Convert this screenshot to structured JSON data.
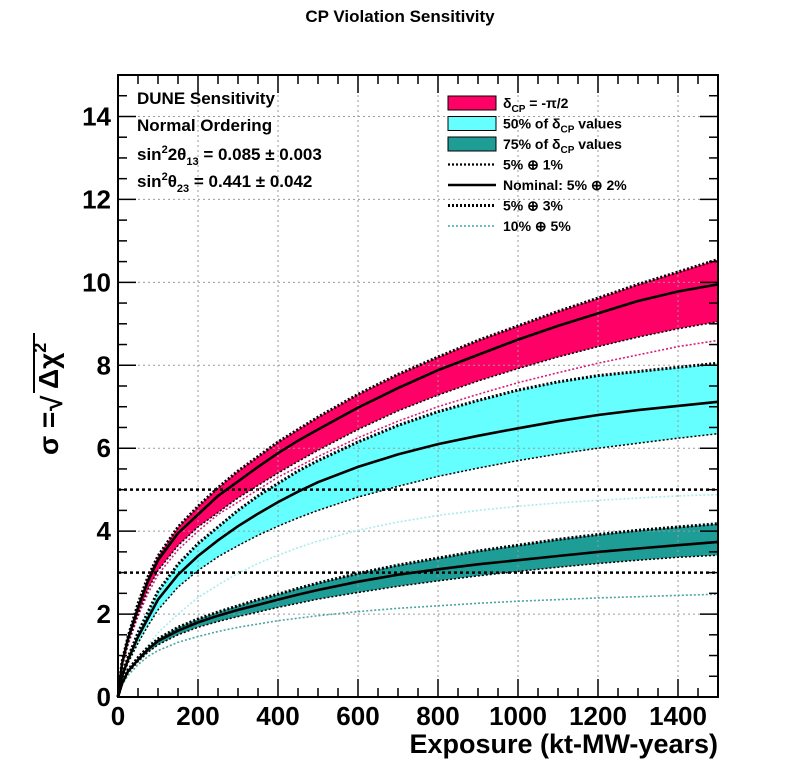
{
  "chart_data": {
    "type": "area",
    "title": "CP Violation Sensitivity",
    "xlabel": "Exposure (kt-MW-years)",
    "ylabel_prefix": "σ = ",
    "ylabel_root": "Δχ",
    "ylabel_sup": "2",
    "xlim": [
      0,
      1500
    ],
    "ylim": [
      0,
      15
    ],
    "x_ticks": [
      0,
      200,
      400,
      600,
      800,
      1000,
      1200,
      1400
    ],
    "y_ticks": [
      0,
      2,
      4,
      6,
      8,
      10,
      12,
      14
    ],
    "grid": true,
    "reference_lines": [
      3,
      5
    ],
    "info_lines": [
      {
        "text": "DUNE Sensitivity"
      },
      {
        "text": "Normal Ordering"
      },
      {
        "pre": "sin",
        "sup1": "2",
        "mid": "2θ",
        "sub": "13",
        "post": " = 0.085 ± 0.003"
      },
      {
        "pre": "sin",
        "sup1": "2",
        "mid": "θ",
        "sub": "23",
        "post": " = 0.441 ± 0.042"
      }
    ],
    "legend": {
      "position": "top-right",
      "entries": [
        {
          "kind": "band",
          "color": "#ff0066",
          "pre": "δ",
          "sub": "CP",
          "post": " = -π/2"
        },
        {
          "kind": "band",
          "color": "#66ffff",
          "pre": "50% of δ",
          "sub": "CP",
          "post": " values"
        },
        {
          "kind": "band",
          "color": "#1e9c96",
          "pre": "75% of δ",
          "sub": "CP",
          "post": " values"
        },
        {
          "kind": "dotted",
          "color": "#000000",
          "text": "5% ⊕ 1%"
        },
        {
          "kind": "solid",
          "color": "#000000",
          "text": "Nominal: 5% ⊕ 2%"
        },
        {
          "kind": "dashed",
          "color": "#000000",
          "text": "5% ⊕ 3%"
        },
        {
          "kind": "dotted-thin",
          "color": "#3aa6a6",
          "text": "10% ⊕ 5%"
        }
      ]
    },
    "x": [
      0,
      10,
      25,
      50,
      75,
      100,
      150,
      200,
      250,
      300,
      350,
      400,
      450,
      500,
      600,
      700,
      800,
      900,
      1000,
      1100,
      1200,
      1300,
      1400,
      1500
    ],
    "series": [
      {
        "name": "δCP = -π/2",
        "color": "#ff0066",
        "upper": [
          0,
          0.85,
          1.45,
          2.25,
          2.9,
          3.4,
          4.1,
          4.6,
          5.05,
          5.45,
          5.8,
          6.15,
          6.45,
          6.75,
          7.3,
          7.78,
          8.2,
          8.6,
          8.95,
          9.3,
          9.62,
          9.95,
          10.25,
          10.55
        ],
        "nominal": [
          0,
          0.8,
          1.4,
          2.15,
          2.8,
          3.3,
          3.95,
          4.4,
          4.85,
          5.2,
          5.55,
          5.88,
          6.18,
          6.45,
          6.98,
          7.45,
          7.88,
          8.25,
          8.62,
          8.95,
          9.25,
          9.55,
          9.78,
          9.95
        ],
        "lower": [
          0,
          0.75,
          1.3,
          2.0,
          2.6,
          3.05,
          3.65,
          4.1,
          4.45,
          4.8,
          5.1,
          5.4,
          5.68,
          5.95,
          6.45,
          6.9,
          7.28,
          7.62,
          7.92,
          8.2,
          8.45,
          8.68,
          8.88,
          9.05
        ],
        "alt": [
          0,
          0.7,
          1.25,
          1.95,
          2.5,
          2.95,
          3.55,
          4.0,
          4.4,
          4.7,
          5.0,
          5.3,
          5.55,
          5.8,
          6.25,
          6.65,
          7.0,
          7.3,
          7.58,
          7.82,
          8.05,
          8.25,
          8.45,
          8.6
        ]
      },
      {
        "name": "50% of δCP values",
        "color": "#66ffff",
        "upper": [
          0,
          0.55,
          0.95,
          1.55,
          2.05,
          2.55,
          3.2,
          3.7,
          4.1,
          4.5,
          4.85,
          5.15,
          5.45,
          5.7,
          6.15,
          6.55,
          6.88,
          7.15,
          7.4,
          7.6,
          7.75,
          7.85,
          7.95,
          8.05
        ],
        "nominal": [
          0,
          0.5,
          0.9,
          1.45,
          1.9,
          2.35,
          2.95,
          3.4,
          3.78,
          4.12,
          4.42,
          4.7,
          4.95,
          5.18,
          5.55,
          5.85,
          6.1,
          6.3,
          6.48,
          6.65,
          6.8,
          6.92,
          7.02,
          7.12
        ],
        "lower": [
          0,
          0.45,
          0.82,
          1.3,
          1.72,
          2.1,
          2.65,
          3.05,
          3.38,
          3.65,
          3.9,
          4.12,
          4.32,
          4.5,
          4.82,
          5.08,
          5.32,
          5.52,
          5.7,
          5.86,
          6.0,
          6.12,
          6.24,
          6.35
        ],
        "alt": [
          0,
          0.35,
          0.6,
          0.95,
          1.25,
          1.55,
          2.0,
          2.4,
          2.7,
          2.98,
          3.22,
          3.42,
          3.6,
          3.76,
          4.02,
          4.22,
          4.38,
          4.5,
          4.6,
          4.68,
          4.74,
          4.8,
          4.85,
          4.88
        ]
      },
      {
        "name": "75% of δCP values",
        "color": "#1e9c96",
        "upper": [
          0,
          0.35,
          0.65,
          0.95,
          1.2,
          1.4,
          1.68,
          1.88,
          2.05,
          2.2,
          2.35,
          2.48,
          2.62,
          2.75,
          2.98,
          3.18,
          3.35,
          3.52,
          3.66,
          3.8,
          3.92,
          4.02,
          4.1,
          4.18
        ],
        "nominal": [
          0,
          0.32,
          0.62,
          0.9,
          1.15,
          1.35,
          1.6,
          1.8,
          1.96,
          2.1,
          2.22,
          2.35,
          2.47,
          2.58,
          2.78,
          2.95,
          3.08,
          3.2,
          3.3,
          3.4,
          3.5,
          3.58,
          3.66,
          3.74
        ],
        "lower": [
          0,
          0.3,
          0.58,
          0.85,
          1.08,
          1.26,
          1.5,
          1.68,
          1.82,
          1.94,
          2.05,
          2.16,
          2.26,
          2.36,
          2.52,
          2.67,
          2.8,
          2.92,
          3.03,
          3.13,
          3.22,
          3.3,
          3.37,
          3.42
        ],
        "alt": [
          0,
          0.28,
          0.52,
          0.78,
          0.98,
          1.12,
          1.32,
          1.46,
          1.58,
          1.68,
          1.76,
          1.84,
          1.9,
          1.96,
          2.06,
          2.14,
          2.2,
          2.26,
          2.31,
          2.35,
          2.39,
          2.42,
          2.45,
          2.48
        ]
      }
    ]
  }
}
